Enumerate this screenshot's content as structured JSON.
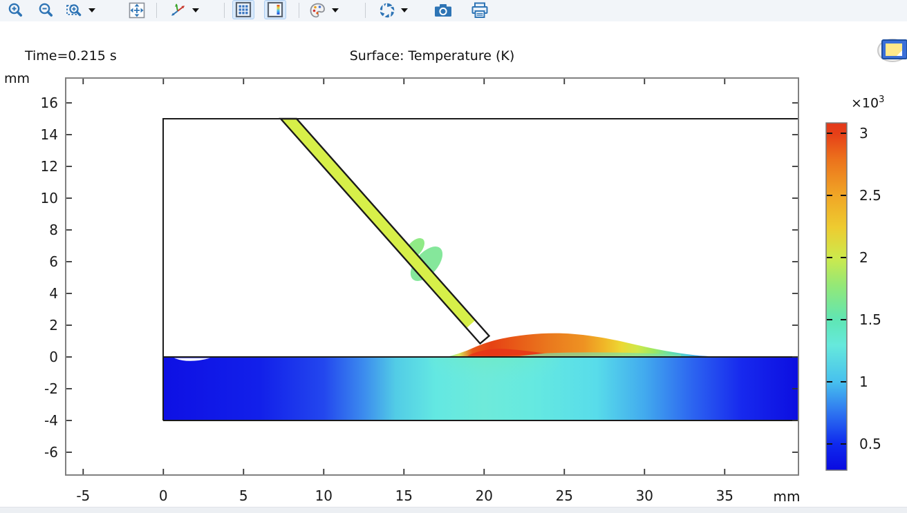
{
  "toolbar": {
    "buttons": [
      {
        "icon": "zoom-in-icon",
        "pressed": false,
        "dropdown": false
      },
      {
        "icon": "zoom-out-icon",
        "pressed": false,
        "dropdown": false
      },
      {
        "icon": "zoom-box-icon",
        "pressed": false,
        "dropdown": true
      },
      {
        "icon": "zoom-extents-icon",
        "pressed": false,
        "dropdown": false
      },
      {
        "icon": "view-axes-icon",
        "pressed": false,
        "dropdown": true
      },
      {
        "icon": "show-grid-icon",
        "pressed": true,
        "dropdown": false
      },
      {
        "icon": "show-color-legend-icon",
        "pressed": true,
        "dropdown": false
      },
      {
        "icon": "color-palette-icon",
        "pressed": false,
        "dropdown": true
      },
      {
        "icon": "scene-light-icon",
        "pressed": false,
        "dropdown": true
      },
      {
        "icon": "snapshot-camera-icon",
        "pressed": false,
        "dropdown": false
      },
      {
        "icon": "print-icon",
        "pressed": false,
        "dropdown": false
      }
    ]
  },
  "plot": {
    "time_label": "Time=0.215 s",
    "title": "Surface: Temperature (K)",
    "y_unit": "mm",
    "x_unit": "mm",
    "colorbar": {
      "multiplier_base": "×10",
      "exponent": "3"
    }
  },
  "chart_data": {
    "type": "heatmap",
    "title": "Surface: Temperature (K)",
    "annotation": "Time=0.215 s",
    "x_unit": "mm",
    "y_unit": "mm",
    "xlim": [
      -6.1,
      39.6
    ],
    "ylim": [
      -7.4,
      17.6
    ],
    "x_ticks": [
      -5,
      0,
      5,
      10,
      15,
      20,
      25,
      30,
      35
    ],
    "y_ticks": [
      16,
      14,
      12,
      10,
      8,
      6,
      4,
      2,
      0,
      -2,
      -4,
      -6
    ],
    "grid": false,
    "legend_position": "right-colorbar",
    "colorbar": {
      "multiplier": "×10³",
      "tick_values": [
        3,
        2.5,
        2,
        1.5,
        1,
        0.5
      ],
      "approx_range_K": [
        290,
        3080
      ],
      "colormap": "rainbow",
      "colormap_stops_bottom_to_top": [
        "#0a0ae0",
        "#0f2aee",
        "#2f78f0",
        "#47c0ee",
        "#66e9dc",
        "#5fe6b4",
        "#93e878",
        "#cde94c",
        "#eecb30",
        "#f0a626",
        "#e63f18",
        "#e2391a"
      ]
    },
    "features": {
      "enclosure_box": {
        "x_mm": [
          0,
          39.6
        ],
        "y_mm": [
          -4,
          15
        ],
        "note": "open black outline box clipped by right edge of view"
      },
      "workpiece_slab": {
        "x_mm": [
          0,
          39.6
        ],
        "y_mm": [
          -4,
          0
        ],
        "temperature_note": "deep blue ~300-500 K at both ends, cyan ~1000-1200 K beneath the arc around x=14-28 mm, slight green ~1300 K directly under the pool at x~20 mm"
      },
      "filler_wire": {
        "top_mm": [
          7.7,
          15
        ],
        "tip_mm": [
          20.1,
          1.0
        ],
        "width_mm": 0.8,
        "angle_deg_from_horizontal": -48,
        "temperature_note": "yellow-green ~2100 K, white (unmelted/out of range) tip segment ~1.3 mm long"
      },
      "melt_drop_on_wire": {
        "center_mm": [
          16.3,
          6.1
        ],
        "temperature_note": "green ~1500-1700 K blob clinging to underside of wire"
      },
      "weld_bead_on_surface": {
        "x_mm": [
          17.8,
          34.6
        ],
        "peak_x_mm": 25.5,
        "peak_height_mm": 1.5,
        "temperature_note": "red ~3000 K streak at base x=19.5-23.5, orange body, yellow crest x~27, cooling through green and cyan to blue tail at x~34"
      },
      "surface_depression": {
        "x_mm": [
          0.7,
          3.1
        ],
        "note": "small white concave dip in slab surface at far left"
      }
    }
  }
}
